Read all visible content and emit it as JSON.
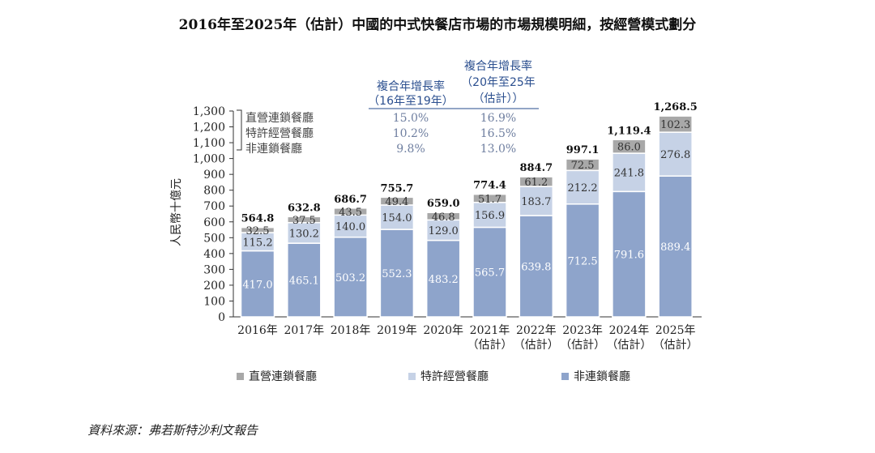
{
  "chart_data": {
    "type": "bar",
    "stacked": true,
    "title": "2016年至2025年（估計）中國的中式快餐店市場的市場規模明細，按經營模式劃分",
    "ylabel": "人民幣十億元",
    "xlabel": "",
    "ylim": [
      0,
      1300
    ],
    "yticks": [
      "0",
      "100",
      "200",
      "300",
      "400",
      "500",
      "600",
      "700",
      "800",
      "900",
      "1,000",
      "1,100",
      "1,200",
      "1,300"
    ],
    "categories": [
      [
        "2016年"
      ],
      [
        "2017年"
      ],
      [
        "2018年"
      ],
      [
        "2019年"
      ],
      [
        "2020年"
      ],
      [
        "2021年",
        "（估計）"
      ],
      [
        "2022年",
        "（估計）"
      ],
      [
        "2023年",
        "（估計）"
      ],
      [
        "2024年",
        "（估計）"
      ],
      [
        "2025年",
        "（估計）"
      ]
    ],
    "series": [
      {
        "name": "非連鎖餐廳",
        "color": "#8ea4cb",
        "values": [
          417.0,
          465.1,
          503.2,
          552.3,
          483.2,
          565.7,
          639.8,
          712.5,
          791.6,
          889.4
        ],
        "labels": [
          "417.0",
          "465.1",
          "503.2",
          "552.3",
          "483.2",
          "565.7",
          "639.8",
          "712.5",
          "791.6",
          "889.4"
        ]
      },
      {
        "name": "特許經營餐廳",
        "color": "#c6d2e6",
        "values": [
          115.2,
          130.2,
          140.0,
          154.0,
          129.0,
          156.9,
          183.7,
          212.2,
          241.8,
          276.8
        ],
        "labels": [
          "115.2",
          "130.2",
          "140.0",
          "154.0",
          "129.0",
          "156.9",
          "183.7",
          "212.2",
          "241.8",
          "276.8"
        ]
      },
      {
        "name": "直營連鎖餐廳",
        "color": "#a8a8a8",
        "values": [
          32.5,
          37.5,
          43.5,
          49.4,
          46.8,
          51.7,
          61.2,
          72.5,
          86.0,
          102.3
        ],
        "labels": [
          "32.5",
          "37.5",
          "43.5",
          "49.4",
          "46.8",
          "51.7",
          "61.2",
          "72.5",
          "86.0",
          "102.3"
        ]
      }
    ],
    "totals": [
      "564.8",
      "632.8",
      "686.7",
      "755.7",
      "659.0",
      "774.4",
      "884.7",
      "997.1",
      "1,119.4",
      "1,268.5"
    ],
    "legend_position": "bottom",
    "grid": false,
    "cagr_table": {
      "headers": [
        [
          "複合年增長率",
          "（16年至19年）"
        ],
        [
          "複合年增長率",
          "（20年至25年",
          "（估計））"
        ]
      ],
      "rows": [
        {
          "label": "直營連鎖餐廳",
          "v1": "15.0%",
          "v2": "16.9%"
        },
        {
          "label": "特許經營餐廳",
          "v1": "10.2%",
          "v2": "16.5%"
        },
        {
          "label": "非連鎖餐廳",
          "v1": "9.8%",
          "v2": "13.0%"
        }
      ],
      "header_color": "#2b4f8f"
    },
    "source": "資料來源：弗若斯特沙利文報告"
  }
}
